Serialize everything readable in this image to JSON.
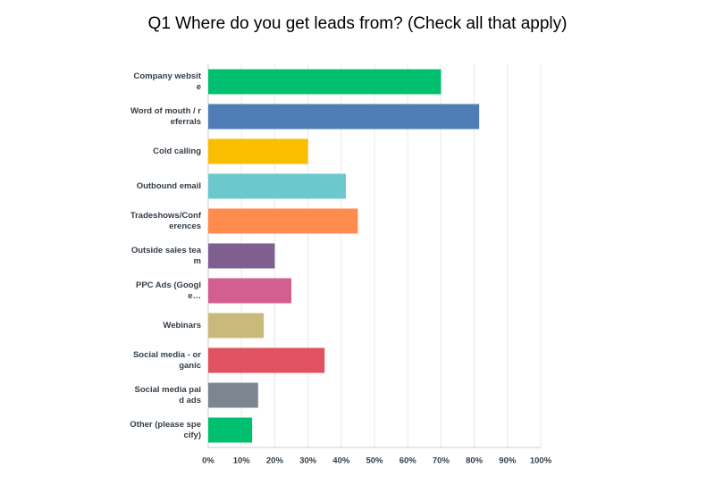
{
  "chart_data": {
    "type": "bar",
    "orientation": "horizontal",
    "title": "Q1 Where do you get leads from? (Check all that apply)",
    "categories": [
      "Company website",
      "Word of mouth / referrals",
      "Cold calling",
      "Outbound email",
      "Tradeshows/Conferences",
      "Outside sales team",
      "PPC Ads (Google…",
      "Webinars",
      "Social media - organic",
      "Social media paid ads",
      "Other (please specify)"
    ],
    "values": [
      70,
      81.5,
      30,
      41.4,
      45,
      20,
      25,
      16.7,
      35,
      15,
      13.2
    ],
    "colors": [
      "#00bf6f",
      "#507cb6",
      "#f9be00",
      "#6bc8cd",
      "#ff8b4f",
      "#7f5f90",
      "#d25f90",
      "#c9b97a",
      "#e05260",
      "#7d8590",
      "#00bf6f"
    ],
    "xlim": [
      0,
      100
    ],
    "xticks": [
      {
        "value": 0,
        "label": "0%"
      },
      {
        "value": 10,
        "label": "10%"
      },
      {
        "value": 20,
        "label": "20%"
      },
      {
        "value": 30,
        "label": "30%"
      },
      {
        "value": 40,
        "label": "40%"
      },
      {
        "value": 50,
        "label": "50%"
      },
      {
        "value": 60,
        "label": "60%"
      },
      {
        "value": 70,
        "label": "70%"
      },
      {
        "value": 80,
        "label": "80%"
      },
      {
        "value": 90,
        "label": "90%"
      },
      {
        "value": 100,
        "label": "100%"
      }
    ],
    "grid": true
  }
}
